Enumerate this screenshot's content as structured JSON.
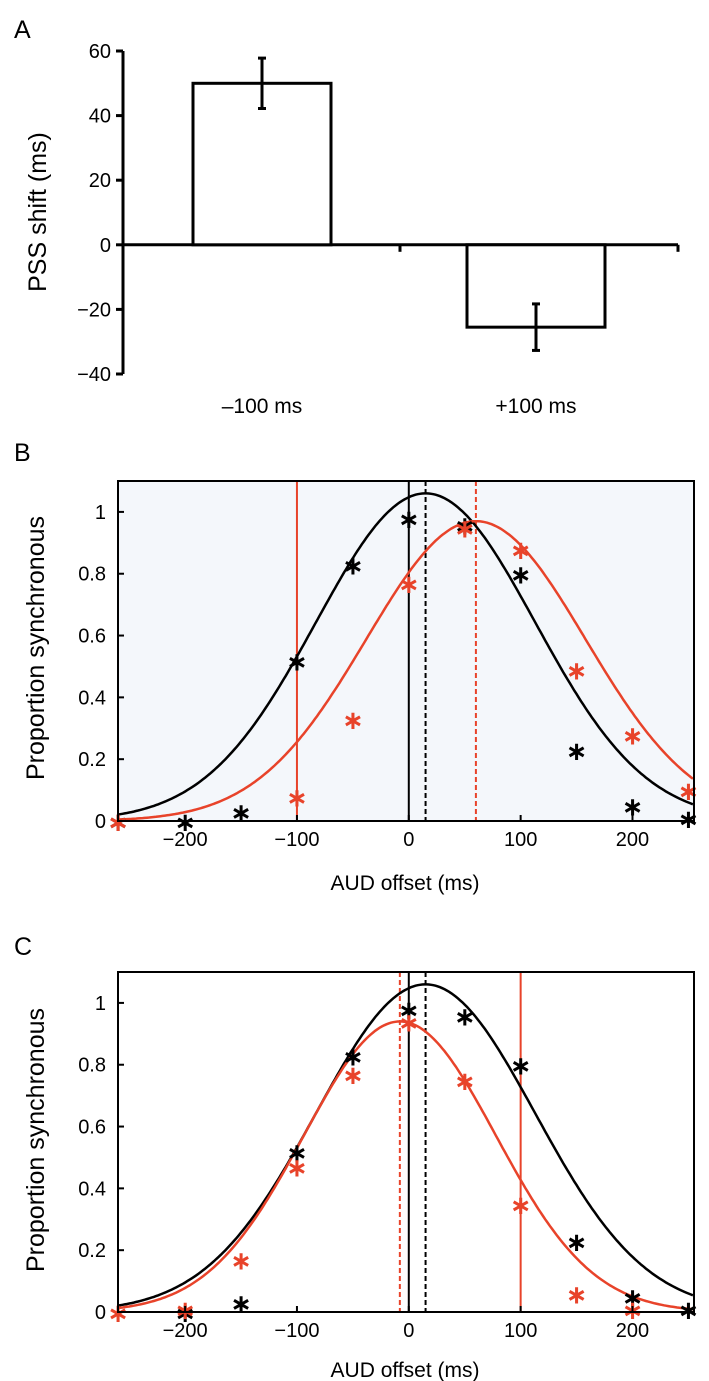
{
  "chart_data": [
    {
      "panel": "A",
      "type": "bar",
      "categories": [
        "–100 ms",
        "+100 ms"
      ],
      "values": [
        50,
        -25.5
      ],
      "errors": [
        7.8,
        7.2
      ],
      "xlabel": "",
      "ylabel": "PSS shift (ms)",
      "ylim": [
        -40,
        60
      ],
      "yticks": [
        60,
        40,
        20,
        0,
        -20,
        -40
      ],
      "ytick_labels": [
        "60",
        "40",
        "20",
        "0",
        "−20",
        "−40"
      ],
      "grid": false,
      "bar_fill": "#ffffff",
      "bar_edge": "#000000"
    },
    {
      "panel": "B",
      "type": "line",
      "xlabel": "AUD offset (ms)",
      "ylabel": "Proportion synchronous",
      "xlim": [
        -260,
        255
      ],
      "ylim": [
        0,
        1.1
      ],
      "xticks": [
        -200,
        -100,
        0,
        100,
        200
      ],
      "xtick_labels": [
        "−200",
        "−100",
        "0",
        "100",
        "200"
      ],
      "yticks": [
        0,
        0.2,
        0.4,
        0.6,
        0.8,
        1
      ],
      "ytick_labels": [
        "0",
        "0.2",
        "0.4",
        "0.6",
        "0.8",
        "1"
      ],
      "grid": false,
      "background": "#f4f7fb",
      "series": [
        {
          "color": "#000000",
          "x": [
            -260,
            -200,
            -150,
            -100,
            -50,
            0,
            50,
            100,
            150,
            200,
            250
          ],
          "y": [
            0.0,
            0.0,
            0.03,
            0.52,
            0.83,
            0.98,
            0.96,
            0.8,
            0.23,
            0.05,
            0.01
          ],
          "fit": {
            "peak": 1.06,
            "center": 15,
            "sigma": 98
          }
        },
        {
          "color": "#e8432a",
          "x": [
            -260,
            -100,
            -50,
            0,
            50,
            100,
            150,
            200,
            250
          ],
          "y": [
            0.0,
            0.08,
            0.33,
            0.77,
            0.95,
            0.88,
            0.49,
            0.28,
            0.1
          ],
          "fit": {
            "peak": 0.97,
            "center": 60,
            "sigma": 98
          }
        }
      ],
      "vlines": [
        {
          "x": 0,
          "color": "#000000",
          "style": "solid"
        },
        {
          "x": 15,
          "color": "#000000",
          "style": "dashed"
        },
        {
          "x": -100,
          "color": "#e8432a",
          "style": "solid"
        },
        {
          "x": 60,
          "color": "#e8432a",
          "style": "dashed"
        }
      ]
    },
    {
      "panel": "C",
      "type": "line",
      "xlabel": "AUD offset (ms)",
      "ylabel": "Proportion synchronous",
      "xlim": [
        -260,
        255
      ],
      "ylim": [
        0,
        1.1
      ],
      "xticks": [
        -200,
        -100,
        0,
        100,
        200
      ],
      "xtick_labels": [
        "−200",
        "−100",
        "0",
        "100",
        "200"
      ],
      "yticks": [
        0,
        0.2,
        0.4,
        0.6,
        0.8,
        1
      ],
      "ytick_labels": [
        "0",
        "0.2",
        "0.4",
        "0.6",
        "0.8",
        "1"
      ],
      "grid": false,
      "background": "#ffffff",
      "series": [
        {
          "color": "#000000",
          "x": [
            -200,
            -150,
            -100,
            -50,
            0,
            50,
            100,
            150,
            200,
            250
          ],
          "y": [
            0.0,
            0.03,
            0.52,
            0.83,
            0.98,
            0.96,
            0.8,
            0.23,
            0.05,
            0.01
          ],
          "fit": {
            "peak": 1.06,
            "center": 15,
            "sigma": 98
          }
        },
        {
          "color": "#e8432a",
          "x": [
            -260,
            -200,
            -150,
            -100,
            -50,
            0,
            50,
            100,
            150,
            200
          ],
          "y": [
            0.0,
            0.01,
            0.17,
            0.47,
            0.77,
            0.94,
            0.75,
            0.35,
            0.06,
            0.01
          ],
          "fit": {
            "peak": 0.94,
            "center": -8,
            "sigma": 86
          }
        }
      ],
      "vlines": [
        {
          "x": 0,
          "color": "#000000",
          "style": "solid"
        },
        {
          "x": 15,
          "color": "#000000",
          "style": "dashed"
        },
        {
          "x": 100,
          "color": "#e8432a",
          "style": "solid"
        },
        {
          "x": -8,
          "color": "#e8432a",
          "style": "dashed"
        }
      ]
    }
  ],
  "panels": {
    "A": {
      "letter": "A"
    },
    "B": {
      "letter": "B"
    },
    "C": {
      "letter": "C"
    }
  }
}
